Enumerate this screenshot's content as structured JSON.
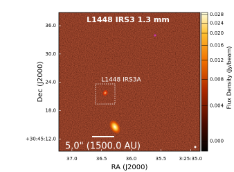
{
  "chart_data": {
    "type": "image",
    "title": "L1448 IRS3 1.3 mm",
    "xlabel": "RA (J2000)",
    "ylabel": "Dec (J2000)",
    "colorbar_label": "Flux Density (Jy/beam)",
    "xlim": [
      37.22,
      34.84
    ],
    "xticks": [
      {
        "value": 37,
        "label": "37.0"
      },
      {
        "value": 36.5,
        "label": "36.5"
      },
      {
        "value": 36,
        "label": "36.0"
      },
      {
        "value": 35.5,
        "label": "35.5"
      },
      {
        "value": 35,
        "label": "3:25:35.0"
      }
    ],
    "ylim": [
      9.4,
      38.8
    ],
    "yticks": [
      {
        "value": 12,
        "label": "+30:45:12.0"
      },
      {
        "value": 18,
        "label": "18.0"
      },
      {
        "value": 24,
        "label": "24.0"
      },
      {
        "value": 30,
        "label": "30.0"
      },
      {
        "value": 36,
        "label": "36.0"
      }
    ],
    "clim": [
      -0.001,
      0.029
    ],
    "stretch": "asinh",
    "cticks": [
      {
        "value": 0,
        "label": "0.000"
      },
      0.004,
      0.008,
      0.012,
      0.016,
      {
        "value": 0.02,
        "label": "0.020"
      },
      0.024,
      0.028
    ],
    "source_label": "L1448 IRS3A",
    "scale_bar_label": "5.0\" (1500.0 AU)"
  }
}
